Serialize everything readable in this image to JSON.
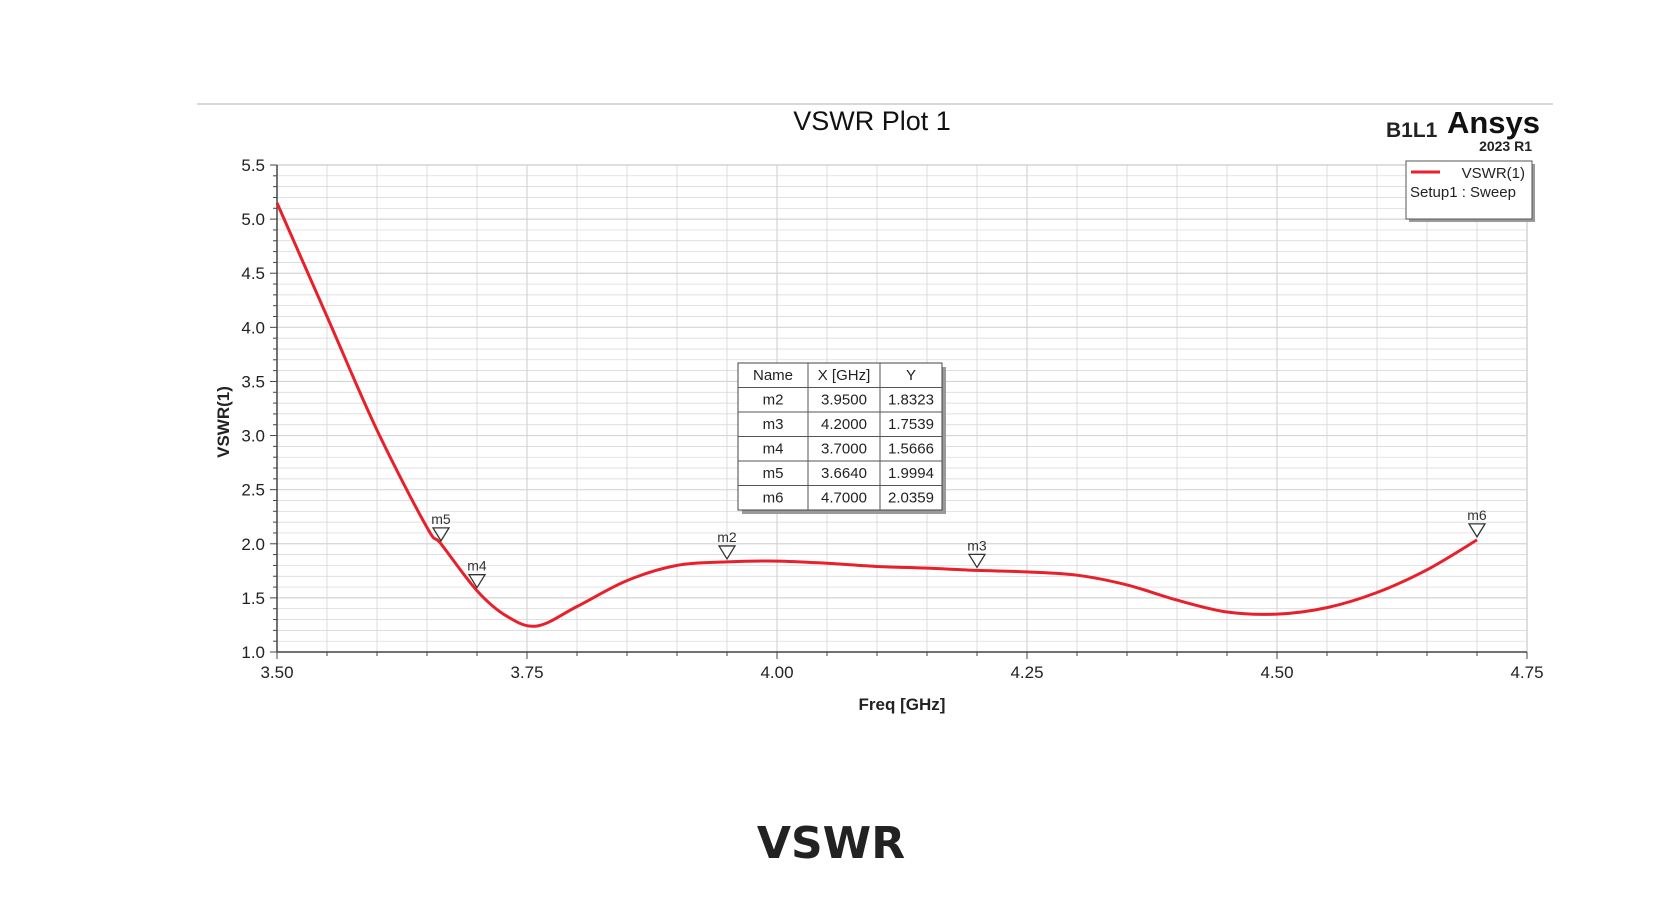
{
  "caption": "VSWR",
  "brand": {
    "design_label": "B1L1",
    "name": "Ansys",
    "version": "2023 R1"
  },
  "colors": {
    "trace": "#e8202a",
    "grid": "#d4d4d4",
    "axis": "#444444",
    "frame": "#bdbdbd"
  },
  "marker_table": {
    "headers": [
      "Name",
      "X [GHz]",
      "Y"
    ],
    "rows": [
      [
        "m2",
        "3.9500",
        "1.8323"
      ],
      [
        "m3",
        "4.2000",
        "1.7539"
      ],
      [
        "m4",
        "3.7000",
        "1.5666"
      ],
      [
        "m5",
        "3.6640",
        "1.9994"
      ],
      [
        "m6",
        "4.7000",
        "2.0359"
      ]
    ]
  },
  "chart_data": {
    "type": "line",
    "title": "VSWR Plot 1",
    "xlabel": "Freq [GHz]",
    "ylabel": "VSWR(1)",
    "xlim": [
      3.5,
      4.75
    ],
    "ylim": [
      1.0,
      5.5
    ],
    "xticks": [
      "3.50",
      "3.75",
      "4.00",
      "4.25",
      "4.50",
      "4.75"
    ],
    "yticks": [
      "1.0",
      "1.5",
      "2.0",
      "2.5",
      "3.0",
      "3.5",
      "4.0",
      "4.5",
      "5.0",
      "5.5"
    ],
    "grid": true,
    "legend_position": "top-right",
    "series": [
      {
        "name": "VSWR(1)",
        "sublabel": "Setup1 : Sweep",
        "x": [
          3.5,
          3.55,
          3.6,
          3.65,
          3.664,
          3.7,
          3.73,
          3.76,
          3.8,
          3.85,
          3.9,
          3.95,
          4.0,
          4.05,
          4.1,
          4.15,
          4.2,
          4.25,
          4.3,
          4.35,
          4.4,
          4.45,
          4.5,
          4.55,
          4.6,
          4.65,
          4.7
        ],
        "y": [
          5.15,
          4.1,
          3.05,
          2.15,
          1.9994,
          1.5666,
          1.33,
          1.24,
          1.42,
          1.66,
          1.8,
          1.8323,
          1.84,
          1.82,
          1.79,
          1.775,
          1.7539,
          1.74,
          1.71,
          1.62,
          1.48,
          1.37,
          1.35,
          1.41,
          1.55,
          1.76,
          2.0359
        ]
      }
    ],
    "markers": [
      {
        "name": "m2",
        "x": 3.95,
        "y": 1.8323
      },
      {
        "name": "m3",
        "x": 4.2,
        "y": 1.7539
      },
      {
        "name": "m4",
        "x": 3.7,
        "y": 1.5666
      },
      {
        "name": "m5",
        "x": 3.664,
        "y": 1.9994
      },
      {
        "name": "m6",
        "x": 4.7,
        "y": 2.0359
      }
    ]
  }
}
